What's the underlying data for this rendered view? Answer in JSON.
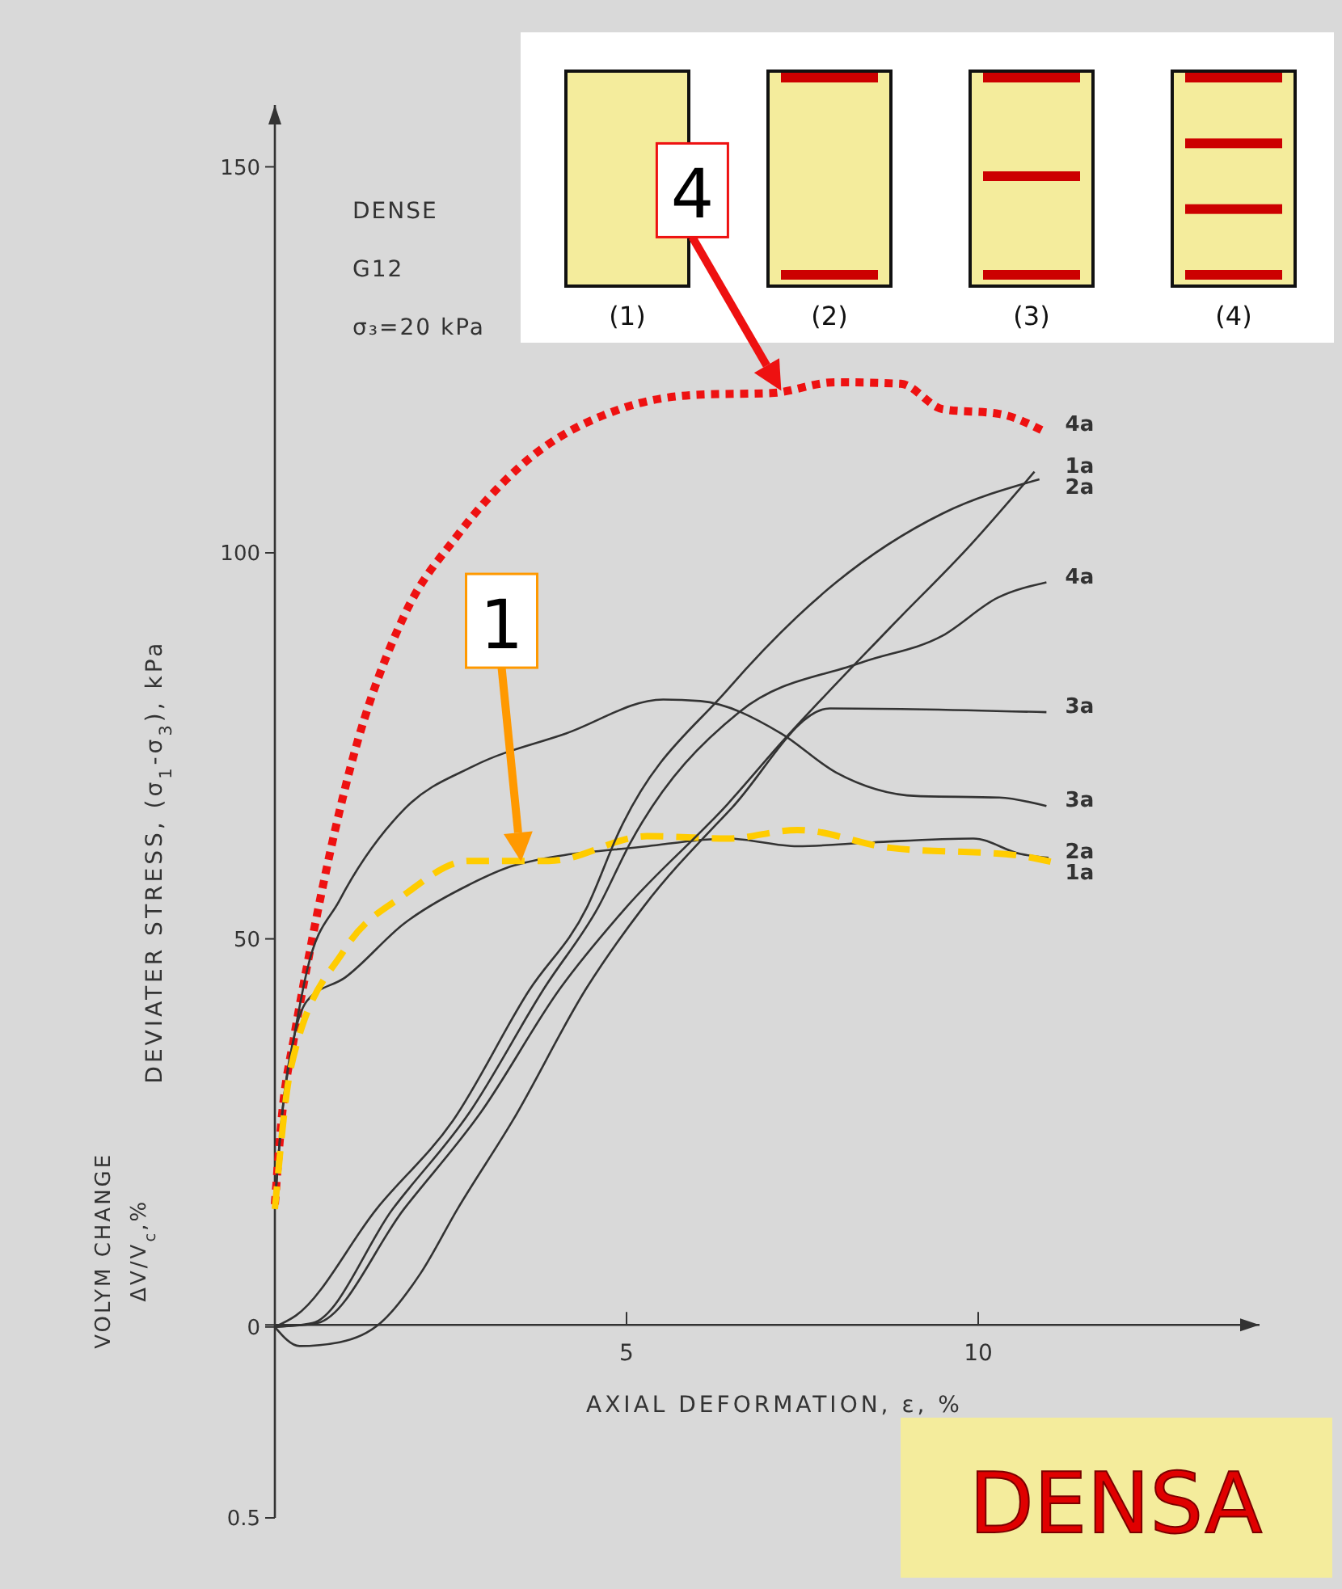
{
  "chart_data": {
    "type": "line",
    "xlabel": "AXIAL DEFORMATION, ε, %",
    "ylabel": "DEVIATER STRESS, (σ$_{1}$-σ$_{3}$), kPa",
    "xlim": [
      0,
      14
    ],
    "xticks": [
      5,
      10
    ],
    "ylim": [
      -25,
      158
    ],
    "yticks": [
      {
        "value": 0,
        "label": null
      },
      50,
      100,
      150
    ],
    "y2lim": [
      0.5,
      -3.2
    ],
    "y2ticks": [
      0,
      0.5
    ],
    "marker": "none",
    "series": [
      {
        "name": "4a",
        "color": "#ee1111",
        "line_style": "dotted",
        "x": [
          0,
          0.1,
          0.28,
          0.46,
          1.08,
          1.84,
          2.6,
          3.5,
          4.9,
          6.05,
          7.06,
          7.97,
          8.9,
          9.5,
          10.3,
          10.9
        ],
        "values": [
          15.6,
          27,
          37.6,
          46.6,
          72.4,
          91.9,
          102.3,
          111.3,
          118.6,
          120.5,
          120.7,
          122.1,
          121.9,
          118.6,
          118,
          115.9
        ]
      },
      {
        "name": "3a",
        "color": "#333333",
        "line_style": "solid",
        "x": [
          0,
          0.1,
          0.28,
          0.46,
          0.92,
          1.84,
          2.83,
          4.14,
          5.52,
          6.05,
          7.2,
          7.97,
          9.13,
          10.3,
          10.97
        ],
        "values": [
          15.6,
          27,
          37.6,
          46,
          55,
          66.8,
          72.4,
          76.6,
          81,
          80.8,
          76.6,
          71.6,
          68.5,
          68.3,
          67.2
        ]
      },
      {
        "name": "2a",
        "color": "#333333",
        "line_style": "solid",
        "x": [
          0,
          0.1,
          0.28,
          0.46,
          1,
          1.84,
          2.76,
          3.4,
          5.3,
          6.44,
          7.43,
          8.5,
          9.93,
          10.6,
          11
        ],
        "values": [
          15.6,
          27,
          37.6,
          42,
          45,
          52,
          57,
          59.5,
          62,
          63,
          62,
          62.5,
          63,
          61,
          60.5
        ]
      },
      {
        "name": "1a",
        "color": "#ffcc00",
        "line_style": "dashed",
        "x": [
          0,
          0.23,
          0.99,
          1.84,
          2.76,
          3.38,
          3.9,
          5.29,
          6.44,
          7.43,
          8.74,
          10.57,
          11.03
        ],
        "values": [
          15,
          33.4,
          48.6,
          55.7,
          60.1,
          60.1,
          60.1,
          63.3,
          63,
          64.1,
          61.8,
          60.8,
          60
        ]
      },
      {
        "name": "2a",
        "color": "#333333",
        "line_style": "solid",
        "axis": "y2",
        "x": [
          0,
          0.3,
          1.45,
          2.53,
          3.61,
          4.44,
          4.9,
          6.44,
          7.98,
          9.49,
          10.87
        ],
        "values": [
          0,
          -0.03,
          -0.31,
          -0.54,
          -0.88,
          -1.1,
          -1.3,
          -1.67,
          -1.95,
          -2.13,
          -2.22
        ]
      },
      {
        "name": "1a",
        "color": "#333333",
        "line_style": "solid",
        "axis": "y2",
        "x": [
          0,
          0.6,
          1.84,
          2.92,
          4.07,
          5,
          6.44,
          7.2,
          8.74,
          9.9,
          10.8
        ],
        "values": [
          0,
          -0.01,
          -0.31,
          -0.56,
          -0.89,
          -1.1,
          -1.37,
          -1.53,
          -1.83,
          -2.05,
          -2.24
        ]
      },
      {
        "name": "4a",
        "color": "#333333",
        "line_style": "solid",
        "axis": "y2",
        "x": [
          0,
          0.53,
          1.68,
          2.76,
          3.84,
          4.6,
          5.06,
          6.6,
          8.34,
          9.49,
          10.28,
          10.97
        ],
        "values": [
          0,
          -0.01,
          -0.31,
          -0.56,
          -0.89,
          -1.1,
          -1.27,
          -1.61,
          -1.74,
          -1.81,
          -1.91,
          -1.95
        ]
      },
      {
        "name": "3a",
        "color": "#333333",
        "line_style": "solid",
        "axis": "y2",
        "x": [
          0,
          0.35,
          0.92,
          1.5,
          2.07,
          2.6,
          3.38,
          4.44,
          5.24,
          6.5,
          7.89,
          10.97
        ],
        "values": [
          0,
          0.05,
          0.04,
          -0.01,
          -0.14,
          -0.31,
          -0.54,
          -0.89,
          -1.1,
          -1.36,
          -1.62,
          -1.61
        ]
      }
    ],
    "annotations": [
      "DENSE",
      "G12",
      "σ₃=20 kPa",
      "DENSA",
      "(1)",
      "(2)",
      "(3)",
      "(4)",
      "VOLYM CHANGE\nΔV/V$_{c}$,%",
      {
        "text": "1",
        "x": 3.5,
        "y": 60
      },
      {
        "text": "4",
        "x": 7.2,
        "y": 121
      }
    ]
  }
}
